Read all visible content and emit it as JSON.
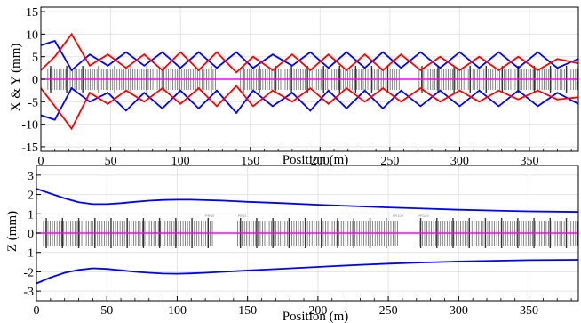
{
  "chart_data": [
    {
      "type": "line",
      "xlabel": "Position (m)",
      "ylabel": "X & Y (mm)",
      "xlim": [
        0,
        385
      ],
      "ylim": [
        -16,
        16
      ],
      "x_ticks": [
        0,
        50,
        100,
        150,
        200,
        250,
        300,
        350
      ],
      "y_ticks": [
        -15,
        -10,
        -5,
        0,
        5,
        10,
        15
      ],
      "grid": true,
      "colors": {
        "x_envelope": "#ff0000",
        "y_envelope": "#0000ff",
        "axis": "#ff00ff",
        "lattice": "#555555"
      },
      "series": [
        {
          "color": "#0000ff",
          "x": [
            0,
            10,
            22,
            35,
            48,
            61,
            74,
            87,
            100,
            113,
            126,
            140,
            152,
            166,
            180,
            193,
            206,
            219,
            232,
            245,
            258,
            272,
            286,
            300,
            314,
            328,
            342,
            356,
            370,
            385
          ],
          "values": [
            7.5,
            8.5,
            2,
            5.5,
            3,
            6,
            3,
            6,
            2.5,
            6,
            2.5,
            6,
            2.5,
            5.5,
            3,
            6,
            2.5,
            6,
            2.5,
            6,
            2.5,
            6,
            2.5,
            6,
            2.5,
            6,
            2.5,
            6,
            2.5,
            4.5
          ]
        },
        {
          "color": "#0000ff",
          "x": [
            0,
            10,
            22,
            35,
            48,
            61,
            74,
            87,
            100,
            113,
            126,
            140,
            152,
            166,
            180,
            193,
            206,
            219,
            232,
            245,
            258,
            272,
            286,
            300,
            314,
            328,
            342,
            356,
            370,
            385
          ],
          "values": [
            -8,
            -9,
            -2,
            -5,
            -3,
            -7,
            -3,
            -6.5,
            -2.5,
            -6.5,
            -2.5,
            -7.5,
            -2.5,
            -6,
            -3,
            -7,
            -2.5,
            -6.5,
            -2.5,
            -6.5,
            -2.5,
            -6,
            -2.5,
            -6,
            -2.5,
            -6,
            -2.5,
            -6,
            -3,
            -5.5
          ]
        },
        {
          "color": "#ff0000",
          "x": [
            0,
            10,
            22,
            35,
            48,
            61,
            74,
            87,
            100,
            113,
            126,
            140,
            152,
            166,
            180,
            193,
            206,
            219,
            232,
            245,
            258,
            272,
            286,
            300,
            314,
            328,
            342,
            356,
            370,
            385
          ],
          "values": [
            2,
            5,
            10,
            3,
            5.5,
            2.5,
            5.5,
            2,
            6,
            2,
            6,
            1.5,
            5,
            2,
            5.5,
            2,
            5.5,
            2,
            5.5,
            2,
            5.5,
            2,
            5,
            2,
            5,
            2,
            5,
            2,
            4.5,
            3.5
          ]
        },
        {
          "color": "#ff0000",
          "x": [
            0,
            10,
            22,
            35,
            48,
            61,
            74,
            87,
            100,
            113,
            126,
            140,
            152,
            166,
            180,
            193,
            206,
            219,
            232,
            245,
            258,
            272,
            286,
            300,
            314,
            328,
            342,
            356,
            370,
            385
          ],
          "values": [
            -2,
            -6,
            -11,
            -3,
            -5.5,
            -2.5,
            -5,
            -2,
            -5.5,
            -2,
            -6,
            -1.5,
            -6,
            -2.5,
            -5,
            -2,
            -5.5,
            -2,
            -5,
            -2,
            -5,
            -2,
            -5,
            -2.5,
            -5,
            -2.5,
            -4.5,
            -2.5,
            -4.5,
            -4
          ]
        }
      ]
    },
    {
      "type": "line",
      "xlabel": "Position (m)",
      "ylabel": "Z (mm)",
      "xlim": [
        0,
        385
      ],
      "ylim": [
        -3.5,
        3.5
      ],
      "x_ticks": [
        0,
        50,
        100,
        150,
        200,
        250,
        300,
        350
      ],
      "y_ticks": [
        -3,
        -2,
        -1,
        0,
        1,
        2,
        3
      ],
      "grid": true,
      "lattice_labels": [
        "PR60",
        "PR61",
        "PR102",
        "PR103"
      ],
      "colors": {
        "z_envelope": "#0000ff",
        "axis": "#ff00ff",
        "lattice": "#555555"
      },
      "series": [
        {
          "color": "#0000ff",
          "x": [
            0,
            10,
            20,
            30,
            40,
            50,
            60,
            70,
            80,
            90,
            100,
            110,
            120,
            130,
            140,
            150,
            175,
            200,
            225,
            250,
            275,
            300,
            325,
            350,
            385
          ],
          "values": [
            2.3,
            2.05,
            1.8,
            1.6,
            1.5,
            1.5,
            1.55,
            1.62,
            1.68,
            1.72,
            1.73,
            1.73,
            1.71,
            1.69,
            1.66,
            1.62,
            1.55,
            1.47,
            1.4,
            1.33,
            1.27,
            1.21,
            1.17,
            1.13,
            1.1
          ]
        },
        {
          "color": "#0000ff",
          "x": [
            0,
            10,
            20,
            30,
            40,
            50,
            60,
            70,
            80,
            90,
            100,
            110,
            120,
            130,
            140,
            150,
            175,
            200,
            225,
            250,
            275,
            300,
            325,
            350,
            385
          ],
          "values": [
            -2.6,
            -2.3,
            -2.05,
            -1.9,
            -1.82,
            -1.85,
            -1.92,
            -2.0,
            -2.05,
            -2.09,
            -2.1,
            -2.08,
            -2.05,
            -2.01,
            -1.97,
            -1.93,
            -1.84,
            -1.75,
            -1.66,
            -1.58,
            -1.52,
            -1.47,
            -1.43,
            -1.4,
            -1.38
          ]
        }
      ]
    }
  ]
}
